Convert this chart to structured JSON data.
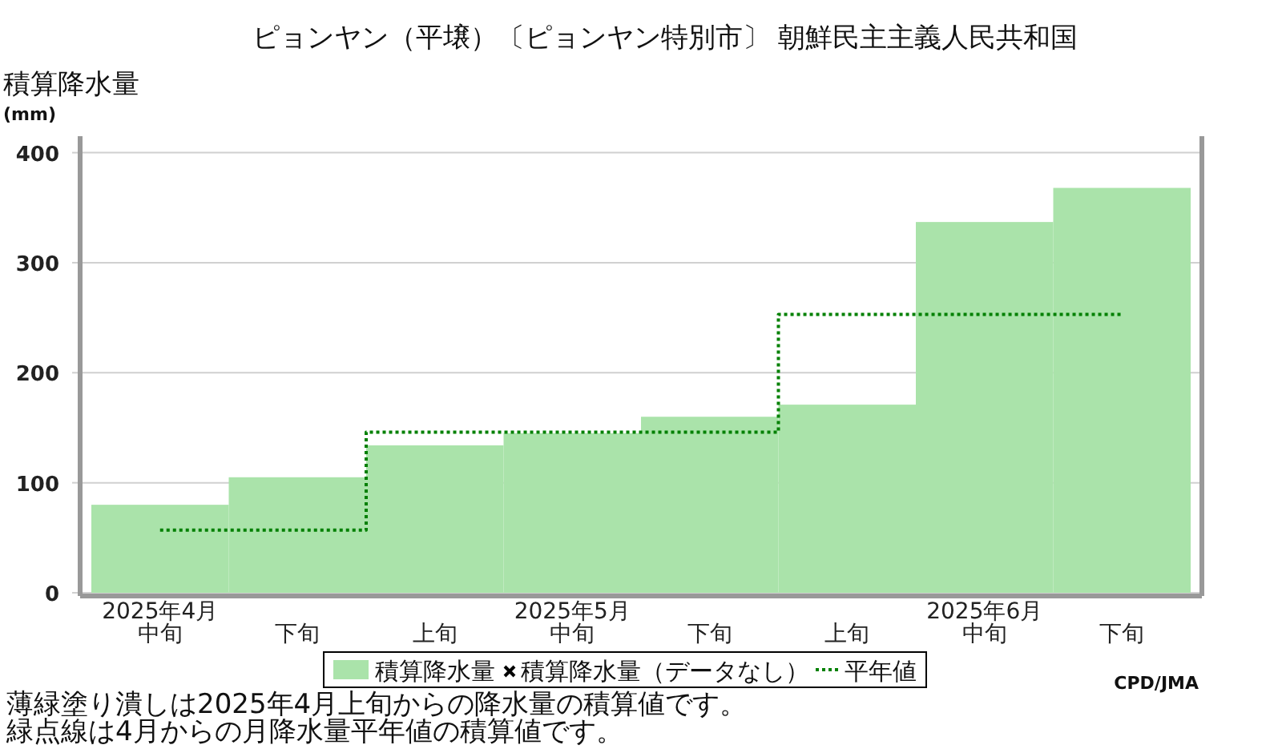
{
  "chart_data": {
    "type": "bar",
    "title": "ピョンヤン（平壌）〔ピョンヤン特別市〕 朝鮮民主主義人民共和国",
    "ylabel": "積算降水量(mm)",
    "categories": [
      "2025年4月中旬",
      "下旬",
      "上旬",
      "2025年5月中旬",
      "下旬",
      "上旬",
      "2025年6月中旬",
      "下旬"
    ],
    "series": [
      {
        "name": "積算降水量",
        "type": "bar",
        "color": "#aae3aa",
        "values": [
          80,
          105,
          134,
          145,
          160,
          171,
          337,
          368
        ]
      },
      {
        "name": "積算降水量（データなし）",
        "type": "scatter",
        "marker": "cross",
        "color": "#000000",
        "values": [
          null,
          null,
          null,
          null,
          null,
          null,
          null,
          null
        ]
      },
      {
        "name": "平年値",
        "type": "step",
        "line_style": "dotted",
        "color": "#008000",
        "values": [
          57,
          57,
          146,
          146,
          146,
          253,
          253,
          253
        ]
      }
    ],
    "ylim": [
      0,
      415
    ],
    "yticks": [
      0,
      100,
      200,
      300,
      400
    ],
    "grid": "y",
    "legend": "bottom",
    "annotations": [
      "CPD/JMA",
      "薄緑塗り潰しは2025年4月上旬からの降水量の積算値です。",
      "緑点線は4月からの月降水量平年値の積算値です。"
    ]
  }
}
